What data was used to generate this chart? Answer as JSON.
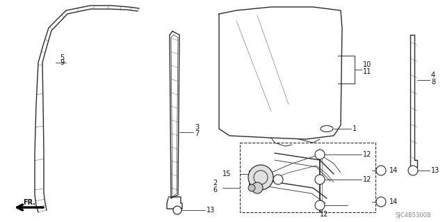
{
  "part_code": "SJC4B5300B",
  "bg_color": "#ffffff",
  "line_color": "#2a2a2a",
  "label_color": "#111111",
  "gray_color": "#888888"
}
